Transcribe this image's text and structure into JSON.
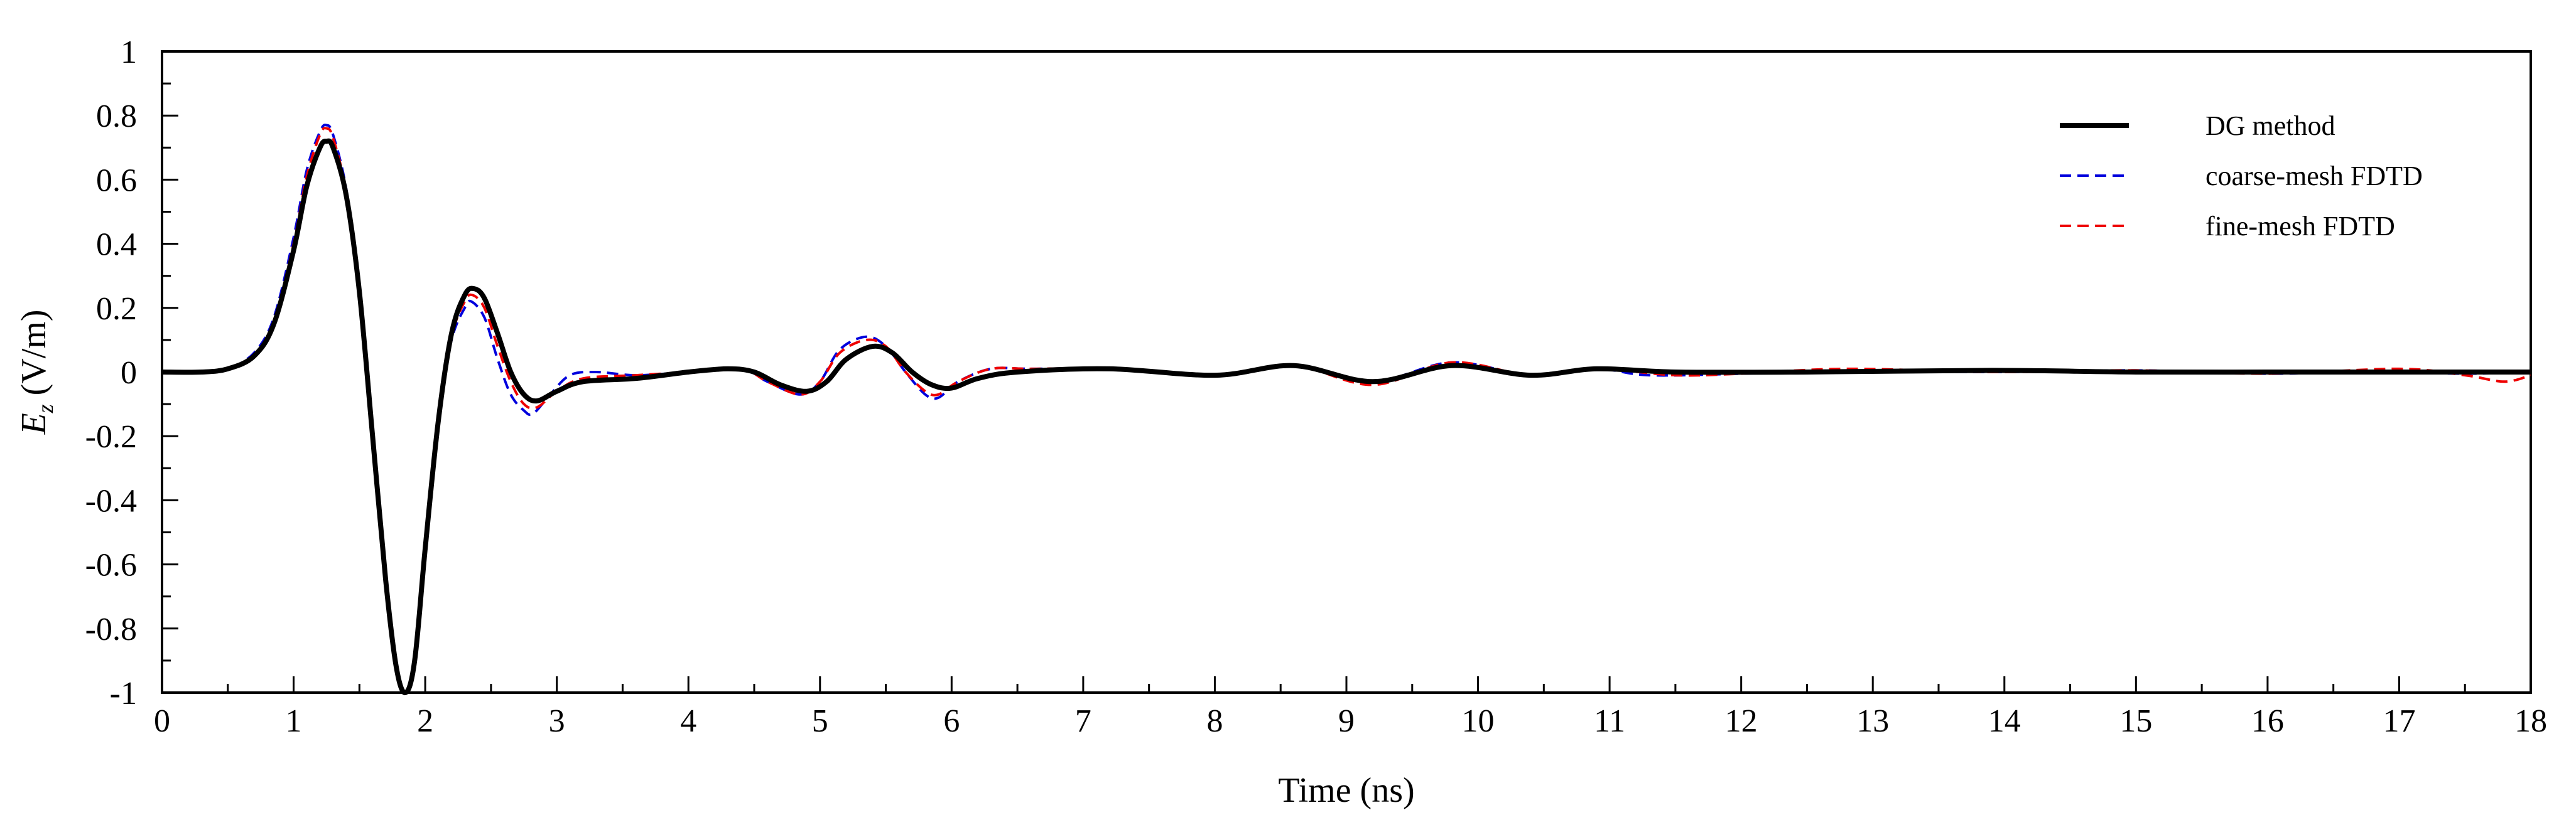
{
  "chart_data": {
    "type": "line",
    "title": "",
    "xlabel": "Time (ns)",
    "ylabel_main": "E",
    "ylabel_sub": "z",
    "ylabel_unit": " (V/m)",
    "xlim": [
      0,
      18
    ],
    "ylim": [
      -1,
      1
    ],
    "x_ticks": [
      0,
      1,
      2,
      3,
      4,
      5,
      6,
      7,
      8,
      9,
      10,
      11,
      12,
      13,
      14,
      15,
      16,
      17,
      18
    ],
    "y_ticks": [
      -1,
      -0.8,
      -0.6,
      -0.4,
      -0.2,
      0,
      0.2,
      0.4,
      0.6,
      0.8,
      1
    ],
    "x_tick_labels": [
      "0",
      "1",
      "2",
      "3",
      "4",
      "5",
      "6",
      "7",
      "8",
      "9",
      "10",
      "11",
      "12",
      "13",
      "14",
      "15",
      "16",
      "17",
      "18"
    ],
    "y_tick_labels": [
      "-1",
      "-0.8",
      "-0.6",
      "-0.4",
      "-0.2",
      "0",
      "0.2",
      "0.4",
      "0.6",
      "0.8",
      "1"
    ],
    "grid": false,
    "legend_position": "top-right",
    "series": [
      {
        "name": "DG method",
        "color": "#000000",
        "style": "solid",
        "points": [
          [
            0,
            0
          ],
          [
            0.3,
            0.0
          ],
          [
            0.5,
            0.01
          ],
          [
            0.7,
            0.05
          ],
          [
            0.85,
            0.15
          ],
          [
            1.0,
            0.38
          ],
          [
            1.1,
            0.58
          ],
          [
            1.2,
            0.7
          ],
          [
            1.25,
            0.72
          ],
          [
            1.3,
            0.7
          ],
          [
            1.4,
            0.55
          ],
          [
            1.5,
            0.25
          ],
          [
            1.6,
            -0.2
          ],
          [
            1.7,
            -0.65
          ],
          [
            1.78,
            -0.92
          ],
          [
            1.85,
            -1.0
          ],
          [
            1.92,
            -0.9
          ],
          [
            2.0,
            -0.55
          ],
          [
            2.1,
            -0.15
          ],
          [
            2.2,
            0.12
          ],
          [
            2.3,
            0.24
          ],
          [
            2.37,
            0.26
          ],
          [
            2.45,
            0.23
          ],
          [
            2.55,
            0.12
          ],
          [
            2.65,
            0.0
          ],
          [
            2.75,
            -0.07
          ],
          [
            2.85,
            -0.09
          ],
          [
            3.0,
            -0.06
          ],
          [
            3.2,
            -0.03
          ],
          [
            3.6,
            -0.02
          ],
          [
            4.0,
            0.0
          ],
          [
            4.3,
            0.01
          ],
          [
            4.5,
            0.0
          ],
          [
            4.7,
            -0.04
          ],
          [
            4.9,
            -0.06
          ],
          [
            5.05,
            -0.03
          ],
          [
            5.2,
            0.04
          ],
          [
            5.4,
            0.08
          ],
          [
            5.55,
            0.06
          ],
          [
            5.7,
            0.0
          ],
          [
            5.85,
            -0.04
          ],
          [
            6.0,
            -0.05
          ],
          [
            6.2,
            -0.02
          ],
          [
            6.5,
            0.0
          ],
          [
            7.2,
            0.01
          ],
          [
            8.0,
            -0.01
          ],
          [
            8.6,
            0.02
          ],
          [
            9.2,
            -0.03
          ],
          [
            9.8,
            0.02
          ],
          [
            10.4,
            -0.01
          ],
          [
            10.9,
            0.01
          ],
          [
            11.5,
            0.0
          ],
          [
            12.5,
            0.0
          ],
          [
            13.9,
            0.005
          ],
          [
            15.0,
            0.0
          ],
          [
            16.0,
            0.0
          ],
          [
            17.0,
            0.0
          ],
          [
            18.0,
            0.0
          ]
        ]
      },
      {
        "name": "coarse-mesh FDTD",
        "color": "#0000dd",
        "style": "dashed",
        "points": [
          [
            0,
            0
          ],
          [
            0.3,
            0.0
          ],
          [
            0.5,
            0.01
          ],
          [
            0.7,
            0.06
          ],
          [
            0.85,
            0.17
          ],
          [
            1.0,
            0.42
          ],
          [
            1.1,
            0.63
          ],
          [
            1.2,
            0.75
          ],
          [
            1.25,
            0.77
          ],
          [
            1.3,
            0.74
          ],
          [
            1.4,
            0.57
          ],
          [
            1.5,
            0.26
          ],
          [
            1.6,
            -0.2
          ],
          [
            1.7,
            -0.66
          ],
          [
            1.78,
            -0.93
          ],
          [
            1.85,
            -1.0
          ],
          [
            1.92,
            -0.89
          ],
          [
            2.0,
            -0.53
          ],
          [
            2.1,
            -0.13
          ],
          [
            2.2,
            0.1
          ],
          [
            2.3,
            0.2
          ],
          [
            2.35,
            0.22
          ],
          [
            2.45,
            0.17
          ],
          [
            2.55,
            0.04
          ],
          [
            2.65,
            -0.07
          ],
          [
            2.75,
            -0.12
          ],
          [
            2.82,
            -0.13
          ],
          [
            2.95,
            -0.07
          ],
          [
            3.1,
            -0.01
          ],
          [
            3.3,
            0.0
          ],
          [
            3.6,
            -0.01
          ],
          [
            4.0,
            0.0
          ],
          [
            4.4,
            0.01
          ],
          [
            4.6,
            -0.03
          ],
          [
            4.85,
            -0.07
          ],
          [
            5.0,
            -0.03
          ],
          [
            5.15,
            0.07
          ],
          [
            5.35,
            0.11
          ],
          [
            5.5,
            0.08
          ],
          [
            5.65,
            0.0
          ],
          [
            5.8,
            -0.07
          ],
          [
            5.9,
            -0.08
          ],
          [
            6.05,
            -0.03
          ],
          [
            6.3,
            0.01
          ],
          [
            6.6,
            0.01
          ],
          [
            7.2,
            0.01
          ],
          [
            8.0,
            -0.01
          ],
          [
            8.6,
            0.02
          ],
          [
            9.2,
            -0.03
          ],
          [
            9.8,
            0.03
          ],
          [
            10.4,
            -0.01
          ],
          [
            10.9,
            0.01
          ],
          [
            11.3,
            -0.01
          ],
          [
            12.0,
            -0.005
          ],
          [
            12.8,
            0.005
          ],
          [
            13.9,
            0.0
          ],
          [
            15.0,
            0.005
          ],
          [
            16.0,
            -0.005
          ],
          [
            16.5,
            0.0
          ],
          [
            17.0,
            0.0
          ],
          [
            17.5,
            -0.005
          ],
          [
            18.0,
            0.0
          ]
        ]
      },
      {
        "name": "fine-mesh FDTD",
        "color": "#ee0000",
        "style": "dashed",
        "points": [
          [
            0,
            0
          ],
          [
            0.3,
            0.0
          ],
          [
            0.5,
            0.01
          ],
          [
            0.7,
            0.05
          ],
          [
            0.85,
            0.16
          ],
          [
            1.0,
            0.4
          ],
          [
            1.1,
            0.61
          ],
          [
            1.2,
            0.74
          ],
          [
            1.25,
            0.76
          ],
          [
            1.3,
            0.73
          ],
          [
            1.4,
            0.56
          ],
          [
            1.5,
            0.25
          ],
          [
            1.6,
            -0.2
          ],
          [
            1.7,
            -0.66
          ],
          [
            1.78,
            -0.93
          ],
          [
            1.85,
            -1.0
          ],
          [
            1.92,
            -0.89
          ],
          [
            2.0,
            -0.54
          ],
          [
            2.1,
            -0.14
          ],
          [
            2.2,
            0.11
          ],
          [
            2.3,
            0.22
          ],
          [
            2.36,
            0.24
          ],
          [
            2.45,
            0.2
          ],
          [
            2.55,
            0.08
          ],
          [
            2.65,
            -0.03
          ],
          [
            2.75,
            -0.1
          ],
          [
            2.85,
            -0.11
          ],
          [
            3.0,
            -0.06
          ],
          [
            3.2,
            -0.02
          ],
          [
            3.6,
            -0.01
          ],
          [
            4.0,
            0.0
          ],
          [
            4.4,
            0.01
          ],
          [
            4.6,
            -0.03
          ],
          [
            4.85,
            -0.07
          ],
          [
            5.0,
            -0.03
          ],
          [
            5.15,
            0.06
          ],
          [
            5.35,
            0.1
          ],
          [
            5.5,
            0.08
          ],
          [
            5.65,
            0.0
          ],
          [
            5.8,
            -0.06
          ],
          [
            5.9,
            -0.07
          ],
          [
            6.05,
            -0.03
          ],
          [
            6.3,
            0.01
          ],
          [
            6.6,
            0.01
          ],
          [
            7.2,
            0.01
          ],
          [
            8.0,
            -0.01
          ],
          [
            8.6,
            0.02
          ],
          [
            9.2,
            -0.04
          ],
          [
            9.8,
            0.03
          ],
          [
            10.4,
            -0.01
          ],
          [
            10.9,
            0.01
          ],
          [
            11.5,
            -0.01
          ],
          [
            12.0,
            -0.005
          ],
          [
            12.8,
            0.01
          ],
          [
            13.9,
            0.0
          ],
          [
            15.0,
            0.005
          ],
          [
            16.0,
            -0.005
          ],
          [
            17.0,
            0.01
          ],
          [
            17.5,
            -0.01
          ],
          [
            17.8,
            -0.03
          ],
          [
            18.0,
            -0.01
          ]
        ]
      }
    ]
  }
}
